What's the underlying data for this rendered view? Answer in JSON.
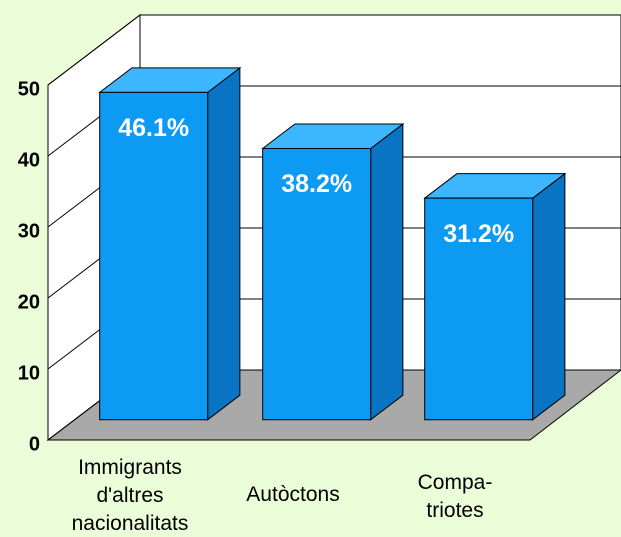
{
  "chart_data": {
    "type": "bar3d",
    "categories": [
      "Immigrants\nd'altres\nnacionalitats",
      "Autòctons",
      "Compa-\ntriotes"
    ],
    "values": [
      46.1,
      38.2,
      31.2
    ],
    "value_labels": [
      "46.1%",
      "38.2%",
      "31.2%"
    ],
    "color": "#0d9af2",
    "ylim": [
      0,
      50
    ],
    "yticks": [
      0,
      10,
      20,
      30,
      40,
      50
    ],
    "grid": true
  }
}
